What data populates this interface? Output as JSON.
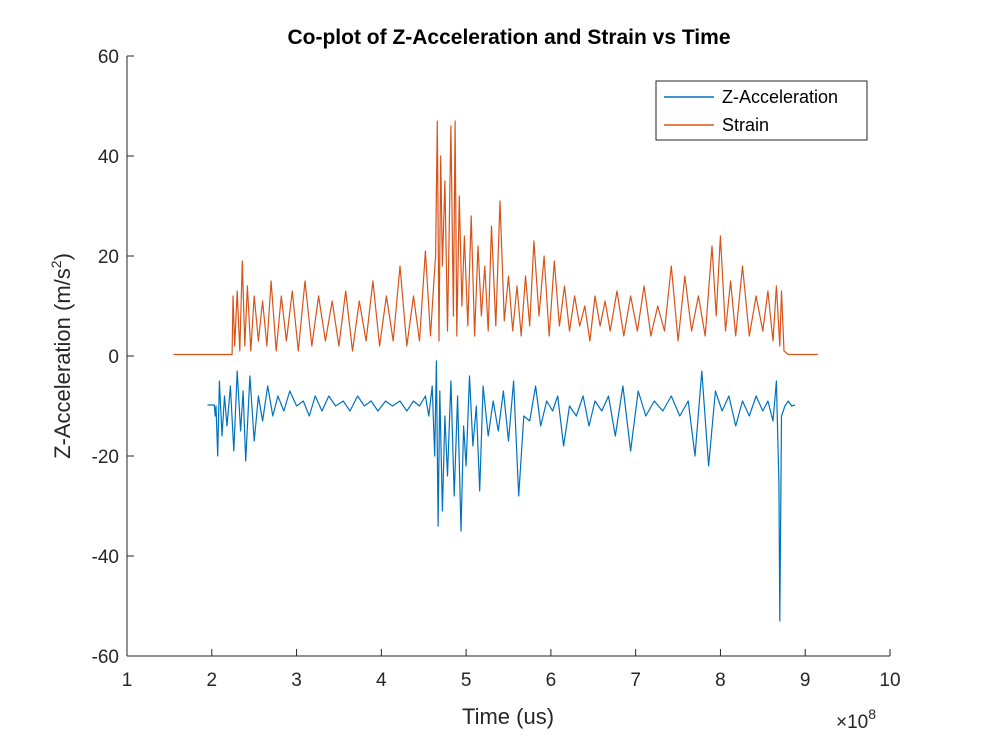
{
  "chart_data": {
    "type": "line",
    "title": "Co-plot of Z-Acceleration and Strain vs Time",
    "xlabel": "Time (us)",
    "ylabel_main": "Z-Acceleration (m/s",
    "ylabel_sup": "2",
    "ylabel_close": ")",
    "x_exponent_base": "×10",
    "x_exponent_power": "8",
    "xlim": [
      1,
      10
    ],
    "ylim": [
      -60,
      60
    ],
    "x_unit_scale": 100000000,
    "xticks": [
      1,
      2,
      3,
      4,
      5,
      6,
      7,
      8,
      9,
      10
    ],
    "xtick_labels": [
      "1",
      "2",
      "3",
      "4",
      "5",
      "6",
      "7",
      "8",
      "9",
      "10"
    ],
    "yticks": [
      -60,
      -40,
      -20,
      0,
      20,
      40,
      60
    ],
    "ytick_labels": [
      "-60",
      "-40",
      "-20",
      "0",
      "20",
      "40",
      "60"
    ],
    "grid": false,
    "legend_position": "top-right",
    "series": [
      {
        "name": "Z-Acceleration",
        "color": "#0072BD",
        "x": [
          1.95,
          2.03,
          2.04,
          2.05,
          2.07,
          2.09,
          2.12,
          2.15,
          2.18,
          2.22,
          2.26,
          2.3,
          2.34,
          2.37,
          2.4,
          2.45,
          2.5,
          2.55,
          2.6,
          2.66,
          2.72,
          2.78,
          2.85,
          2.92,
          3.0,
          3.08,
          3.15,
          3.22,
          3.3,
          3.38,
          3.46,
          3.55,
          3.63,
          3.72,
          3.8,
          3.88,
          3.96,
          4.05,
          4.13,
          4.22,
          4.3,
          4.38,
          4.45,
          4.52,
          4.56,
          4.6,
          4.63,
          4.65,
          4.67,
          4.69,
          4.72,
          4.75,
          4.78,
          4.82,
          4.86,
          4.9,
          4.94,
          4.97,
          5.0,
          5.04,
          5.08,
          5.12,
          5.16,
          5.2,
          5.26,
          5.32,
          5.38,
          5.44,
          5.5,
          5.56,
          5.62,
          5.68,
          5.75,
          5.82,
          5.88,
          5.95,
          6.02,
          6.08,
          6.15,
          6.22,
          6.3,
          6.38,
          6.45,
          6.52,
          6.6,
          6.68,
          6.76,
          6.85,
          6.94,
          7.03,
          7.12,
          7.22,
          7.32,
          7.42,
          7.52,
          7.62,
          7.7,
          7.78,
          7.86,
          7.94,
          8.02,
          8.1,
          8.18,
          8.26,
          8.34,
          8.42,
          8.5,
          8.56,
          8.62,
          8.66,
          8.68,
          8.69,
          8.7,
          8.72,
          8.76,
          8.8,
          8.84,
          8.88
        ],
        "y": [
          -9.8,
          -9.8,
          -12,
          -10,
          -20,
          -5,
          -16,
          -8,
          -14,
          -6,
          -19,
          -3,
          -15,
          -7,
          -21,
          -4,
          -17,
          -8,
          -13,
          -6,
          -12,
          -8,
          -11,
          -7,
          -10,
          -9,
          -12,
          -8,
          -11,
          -8,
          -10,
          -9,
          -11,
          -8,
          -10,
          -9,
          -11,
          -9,
          -10,
          -9,
          -11,
          -9,
          -10,
          -8,
          -12,
          -6,
          -20,
          -1,
          -34,
          -7,
          -31,
          -12,
          -24,
          -5,
          -28,
          -8,
          -35,
          -14,
          -22,
          -4,
          -18,
          -10,
          -27,
          -6,
          -16,
          -9,
          -15,
          -7,
          -17,
          -5,
          -28,
          -12,
          -13,
          -6,
          -14,
          -9,
          -11,
          -8,
          -18,
          -10,
          -12,
          -8,
          -14,
          -9,
          -11,
          -8,
          -16,
          -6,
          -19,
          -7,
          -12,
          -9,
          -11,
          -8,
          -12,
          -9,
          -20,
          -3,
          -22,
          -7,
          -11,
          -8,
          -14,
          -9,
          -12,
          -8,
          -11,
          -9,
          -13,
          -5,
          -19,
          -25,
          -53,
          -12,
          -10,
          -9,
          -10,
          -9.8
        ]
      },
      {
        "name": "Strain",
        "color": "#D95319",
        "x": [
          1.55,
          1.7,
          1.85,
          2.0,
          2.1,
          2.2,
          2.24,
          2.25,
          2.27,
          2.3,
          2.33,
          2.36,
          2.39,
          2.42,
          2.46,
          2.5,
          2.55,
          2.6,
          2.65,
          2.7,
          2.76,
          2.82,
          2.88,
          2.95,
          3.02,
          3.1,
          3.18,
          3.26,
          3.34,
          3.42,
          3.5,
          3.58,
          3.66,
          3.74,
          3.82,
          3.9,
          3.98,
          4.06,
          4.14,
          4.22,
          4.3,
          4.38,
          4.45,
          4.52,
          4.58,
          4.62,
          4.64,
          4.66,
          4.68,
          4.7,
          4.72,
          4.75,
          4.78,
          4.82,
          4.85,
          4.87,
          4.89,
          4.92,
          4.95,
          4.98,
          5.02,
          5.06,
          5.1,
          5.14,
          5.18,
          5.22,
          5.26,
          5.3,
          5.35,
          5.4,
          5.45,
          5.5,
          5.55,
          5.6,
          5.65,
          5.7,
          5.75,
          5.8,
          5.86,
          5.92,
          5.98,
          6.04,
          6.1,
          6.16,
          6.22,
          6.28,
          6.34,
          6.4,
          6.46,
          6.52,
          6.58,
          6.64,
          6.7,
          6.78,
          6.86,
          6.94,
          7.02,
          7.1,
          7.18,
          7.26,
          7.34,
          7.42,
          7.5,
          7.58,
          7.66,
          7.74,
          7.82,
          7.9,
          7.95,
          8.0,
          8.06,
          8.12,
          8.18,
          8.26,
          8.34,
          8.42,
          8.5,
          8.56,
          8.62,
          8.66,
          8.7,
          8.72,
          8.75,
          8.8,
          8.9,
          9.0,
          9.15
        ],
        "y": [
          0.3,
          0.3,
          0.3,
          0.3,
          0.3,
          0.3,
          0.3,
          12,
          2,
          13,
          1,
          19,
          2,
          14,
          1,
          12,
          3,
          11,
          2,
          15,
          1,
          12,
          3,
          13,
          1,
          15,
          2,
          12,
          3,
          11,
          2,
          13,
          1,
          11,
          3,
          15,
          2,
          12,
          3,
          18,
          2,
          12,
          3,
          21,
          4,
          15,
          20,
          47,
          3,
          40,
          18,
          35,
          5,
          46,
          8,
          47,
          4,
          32,
          10,
          24,
          6,
          28,
          4,
          22,
          8,
          18,
          5,
          26,
          6,
          31,
          7,
          16,
          5,
          14,
          4,
          16,
          6,
          23,
          8,
          20,
          4,
          19,
          6,
          14,
          5,
          12,
          6,
          10,
          3,
          12,
          6,
          11,
          5,
          13,
          4,
          12,
          5,
          14,
          4,
          10,
          5,
          18,
          3,
          16,
          5,
          12,
          4,
          22,
          8,
          24,
          5,
          15,
          4,
          18,
          4,
          12,
          5,
          13,
          3,
          14,
          2,
          13,
          1,
          0.3,
          0.3,
          0.3,
          0.3
        ]
      }
    ]
  }
}
